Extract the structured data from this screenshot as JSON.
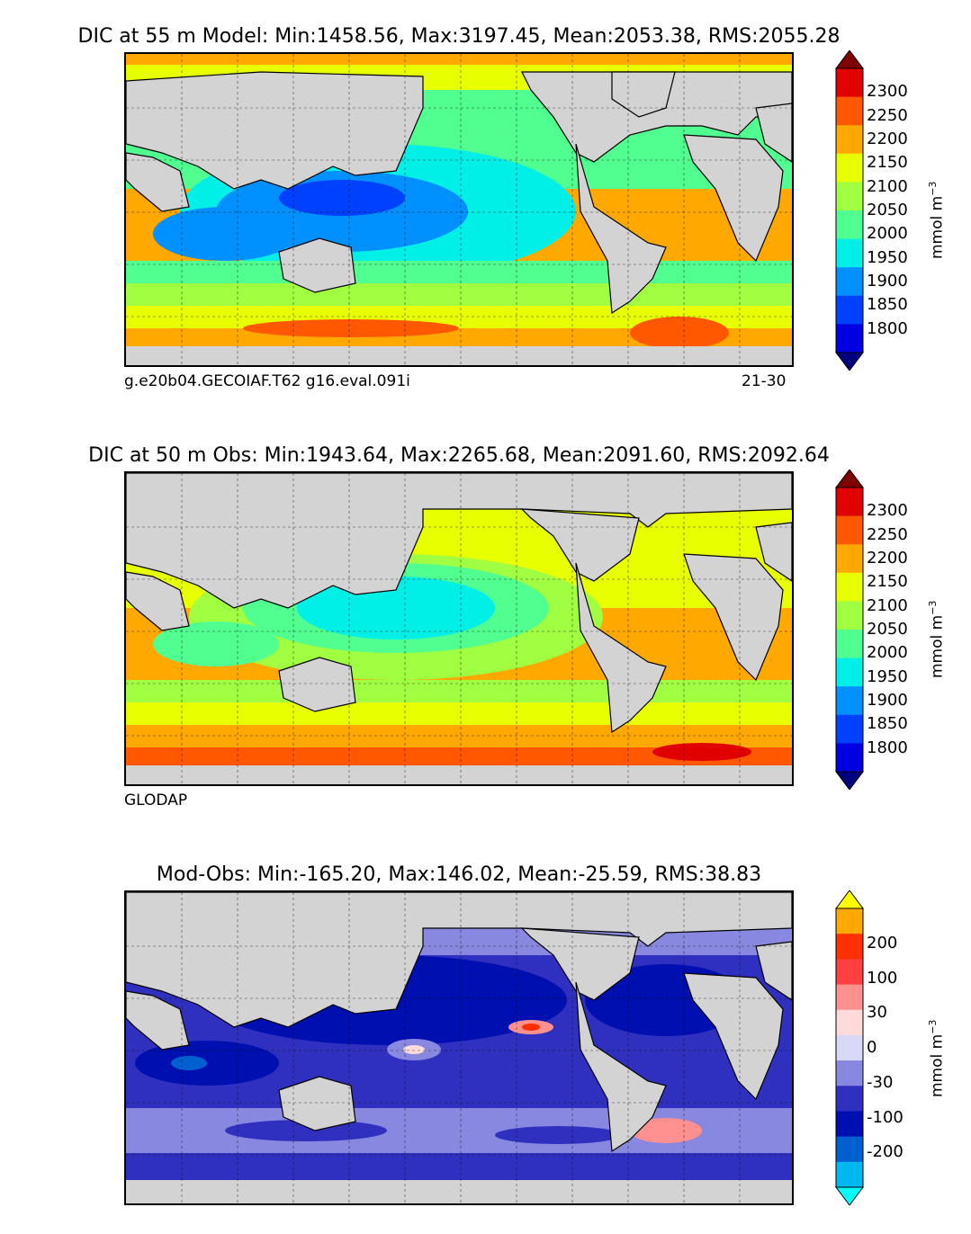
{
  "panels": [
    {
      "title": "DIC at 55 m Model: Min:1458.56, Max:3197.45, Mean:2053.38, RMS:2055.28",
      "caption_left": "g.e20b04.GECOIAF.T62 g16.eval.091i",
      "caption_right": "21-30",
      "unit": "mmol m",
      "unit_exp": "−3",
      "colorbar_ticks": [
        "2300",
        "2250",
        "2200",
        "2150",
        "2100",
        "2050",
        "2000",
        "1950",
        "1900",
        "1850",
        "1800"
      ],
      "colorbar_colors": [
        "#7f0000",
        "#e00000",
        "#ff5800",
        "#ffa800",
        "#e8ff00",
        "#a0ff40",
        "#50ff90",
        "#00f0e8",
        "#0090ff",
        "#0040ff",
        "#0000e0",
        "#00007f"
      ]
    },
    {
      "title": "DIC at 50 m Obs: Min:1943.64, Max:2265.68, Mean:2091.60, RMS:2092.64",
      "caption_left": "GLODAP",
      "caption_right": "",
      "unit": "mmol m",
      "unit_exp": "−3",
      "colorbar_ticks": [
        "2300",
        "2250",
        "2200",
        "2150",
        "2100",
        "2050",
        "2000",
        "1950",
        "1900",
        "1850",
        "1800"
      ],
      "colorbar_colors": [
        "#7f0000",
        "#e00000",
        "#ff5800",
        "#ffa800",
        "#e8ff00",
        "#a0ff40",
        "#50ff90",
        "#00f0e8",
        "#0090ff",
        "#0040ff",
        "#0000e0",
        "#00007f"
      ]
    },
    {
      "title": "Mod-Obs: Min:-165.20, Max:146.02, Mean:-25.59, RMS:38.83",
      "caption_left": "",
      "caption_right": "",
      "unit": "mmol m",
      "unit_exp": "−3",
      "colorbar_ticks": [
        "200",
        "100",
        "30",
        "0",
        "-30",
        "-100",
        "-200"
      ],
      "colorbar_colors": [
        "#ffff00",
        "#ffa800",
        "#ff3000",
        "#ff4040",
        "#ff9090",
        "#ffdada",
        "#d8d8f8",
        "#8888e0",
        "#3030c0",
        "#0010b0",
        "#0060d0",
        "#00b8f0",
        "#00ffff"
      ]
    }
  ]
}
